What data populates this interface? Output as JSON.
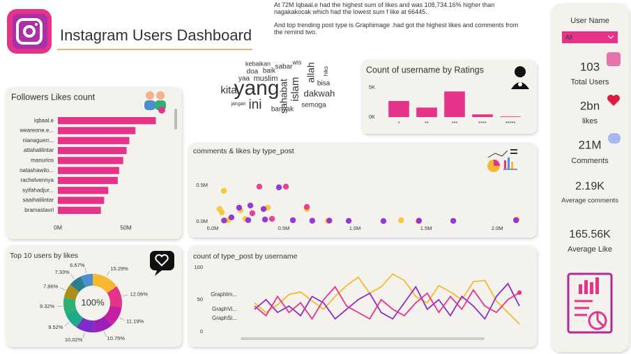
{
  "header": {
    "title": "Instagram Users Dashboard"
  },
  "narrative": [
    "At 72M Iqbaal.e had the highest sum of likes and was 108,734.16% higher than nagakakocak which had the lowest sum f like at 66445.",
    "And top trending post type is Graphimage .had got the highest likes and comments from the remind two."
  ],
  "word_cloud": [
    "yang",
    "kita",
    "ini",
    "islam",
    "allah",
    "dakwah",
    "sahabat",
    "muslim",
    "semoga",
    "banyak",
    "kebaikan",
    "doa",
    "baik",
    "sabar",
    "yaa",
    "bisa",
    "jangan",
    "wis",
    "hiks"
  ],
  "slicer": {
    "label": "User Name",
    "value": "All"
  },
  "kpis": [
    {
      "value": "103",
      "label": "Total Users"
    },
    {
      "value": "2bn",
      "label": "likes"
    },
    {
      "value": "21M",
      "label": "Comments"
    },
    {
      "value": "2.19K",
      "label": "Average comments"
    },
    {
      "value": "165.56K",
      "label": "Average Like"
    }
  ],
  "chart_data": [
    {
      "type": "bar",
      "orientation": "horizontal",
      "title": "Followers Likes count",
      "categories": [
        "iqbaal.e",
        "weareone.e...",
        "nianaguerr...",
        "attahalilintar",
        "manurios",
        "natashawilo...",
        "rachelvennya",
        "syifahadjur...",
        "saaihalilintar",
        "bramastavrl"
      ],
      "values": [
        72000000,
        57000000,
        52500000,
        50500000,
        48000000,
        45000000,
        44000000,
        37000000,
        34000000,
        31600000
      ],
      "color": "#e6338a",
      "xlim": [
        0,
        83000000
      ],
      "xticks": [
        {
          "value": 0,
          "label": "0M"
        },
        {
          "value": 50000000,
          "label": "50M"
        }
      ]
    },
    {
      "type": "bar",
      "title": "Count of username by Ratings",
      "categories": [
        "*",
        "**",
        "***",
        "****",
        "*****"
      ],
      "values": [
        2700,
        1600,
        4300,
        450,
        100
      ],
      "color": "#e6338a",
      "ylim": [
        0,
        5500
      ],
      "yticks": [
        {
          "value": 0,
          "label": "0K"
        },
        {
          "value": 5000,
          "label": "5K"
        }
      ]
    },
    {
      "type": "scatter",
      "title": "comments & likes by type_post",
      "series": [
        {
          "color": "#f7c331",
          "x": [
            78000,
            49000,
            64000,
            196000,
            387000,
            662000,
            108000,
            1324000,
            1446000,
            2137000,
            230000,
            809000
          ],
          "y": [
            423000,
            173000,
            125000,
            154000,
            192000,
            173000,
            19000,
            19000,
            5000,
            29000,
            38000,
            10000
          ]
        },
        {
          "color": "#8a2bd0",
          "x": [
            186000,
            466000,
            358000,
            265000,
            132000,
            564000,
            956000,
            1691000,
            2132000,
            368000,
            700000,
            1200000,
            1450000,
            80000,
            250000,
            820000
          ],
          "y": [
            192000,
            471000,
            173000,
            221000,
            58000,
            19000,
            10000,
            10000,
            19000,
            29000,
            12000,
            8000,
            12000,
            15000,
            20000,
            14000
          ]
        },
        {
          "color": "#e6338a",
          "x": [
            328000,
            515000,
            662000,
            279000,
            417000
          ],
          "y": [
            481000,
            481000,
            202000,
            115000,
            38000
          ]
        }
      ],
      "xlim": [
        0,
        2200000
      ],
      "ylim": [
        0,
        700000
      ],
      "xticks": [
        {
          "value": 0,
          "label": "0.0M"
        },
        {
          "value": 500000,
          "label": "0.5M"
        },
        {
          "value": 1000000,
          "label": "1.0M"
        },
        {
          "value": 1500000,
          "label": "1.5M"
        },
        {
          "value": 2000000,
          "label": "2.0M"
        }
      ],
      "yticks": [
        {
          "value": 0,
          "label": "0.0M"
        },
        {
          "value": 500000,
          "label": "0.5M"
        }
      ]
    },
    {
      "type": "pie",
      "title": "Top 10 users by likes",
      "center_label": "100%",
      "values": [
        15.29,
        12.06,
        11.19,
        10.75,
        10.02,
        9.52,
        9.32,
        7.86,
        7.33,
        6.67
      ],
      "value_labels": [
        "15.29%",
        "12.06%",
        "11.19%",
        "10.75%",
        "10.02%",
        "9.52%",
        "9.32%",
        "7.86%",
        "7.33%",
        "6.67%"
      ],
      "colors": [
        "#f7b731",
        "#e6338a",
        "#c5209f",
        "#9b1fb8",
        "#7b2dc9",
        "#1fa88c",
        "#2fb073",
        "#b08d1a",
        "#2b7d8f",
        "#4a90d0"
      ]
    },
    {
      "type": "line",
      "title": "count of type_post by username",
      "categories": [
        null,
        null,
        null,
        null,
        null,
        null,
        null,
        null,
        null,
        null,
        null,
        null,
        null,
        null,
        null,
        null,
        null,
        null,
        null,
        null,
        null,
        null,
        null,
        null
      ],
      "series": [
        {
          "name": "GraphIm...",
          "color": "#f7b731",
          "values": [
            45,
            30,
            42,
            58,
            62,
            48,
            35,
            55,
            72,
            85,
            60,
            70,
            90,
            80,
            55,
            45,
            72,
            62,
            50,
            78,
            80,
            48,
            30,
            12
          ]
        },
        {
          "name": "GraphVi...",
          "color": "#8a2bd0",
          "values": [
            35,
            50,
            30,
            40,
            25,
            55,
            45,
            20,
            35,
            50,
            60,
            30,
            20,
            45,
            70,
            35,
            50,
            25,
            55,
            40,
            20,
            55,
            75,
            40
          ]
        },
        {
          "name": "GraphSi...",
          "color": "#e6338a",
          "end_marker": true,
          "values": [
            40,
            25,
            55,
            30,
            45,
            20,
            50,
            70,
            40,
            30,
            20,
            50,
            35,
            25,
            45,
            60,
            30,
            55,
            35,
            65,
            40,
            30,
            50,
            61
          ]
        }
      ],
      "ylim": [
        0,
        100
      ],
      "yticks": [
        0,
        50,
        100
      ]
    }
  ]
}
